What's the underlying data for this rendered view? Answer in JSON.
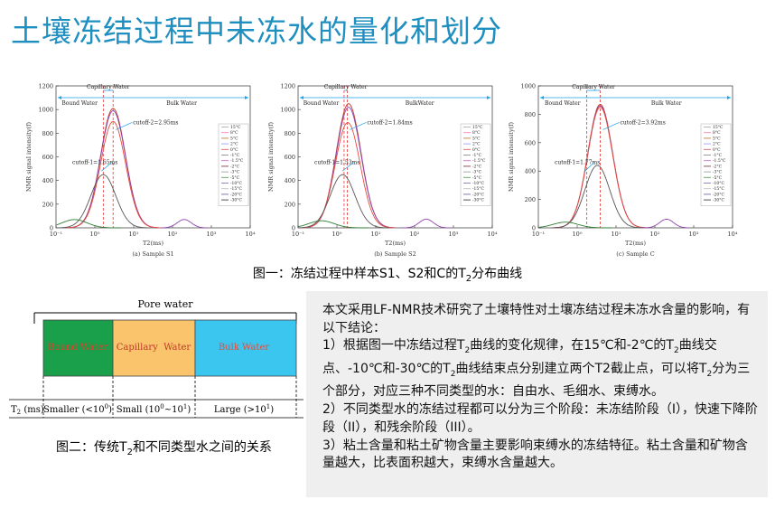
{
  "title": "土壤冻结过程中未冻水的量化和划分",
  "chart_data": [
    {
      "type": "line",
      "subtitle": "(a) Sample S1",
      "xlabel": "T2(ms)",
      "ylabel": "NMR signal intensity(f)",
      "xscale": "log",
      "xlim": [
        0.1,
        10000
      ],
      "ylim": [
        0,
        1200
      ],
      "yticks": [
        "0",
        "200",
        "400",
        "600",
        "800",
        "1000",
        "1200"
      ],
      "xticks": [
        "10⁻¹",
        "10⁰",
        "10¹",
        "10²",
        "10³",
        "10⁴"
      ],
      "regions": [
        "Bound Water",
        "Capillary Water",
        "Bulk Water"
      ],
      "cutoff1_label": "cutoff-1=1.65ms",
      "cutoff1": 1.65,
      "cutoff2_label": "cutoff-2=2.95ms",
      "cutoff2": 2.95,
      "legend": [
        "15°C",
        "8°C",
        "5°C",
        "2°C",
        "0°C",
        "-1°C",
        "-1.5°C",
        "-2°C",
        "-3°C",
        "-5°C",
        "-10°C",
        "-15°C",
        "-20°C",
        "-30°C"
      ],
      "series": [
        {
          "name": "15°C",
          "peak": 1010,
          "mode": 2.95
        },
        {
          "name": "0°C",
          "peak": 990,
          "mode": 2.95
        },
        {
          "name": "-1°C",
          "peak": 900,
          "mode": 2.95
        },
        {
          "name": "-2°C",
          "peak": 450,
          "mode": 1.65
        },
        {
          "name": "-30°C",
          "peak": 70,
          "mode": 0.3
        }
      ]
    },
    {
      "type": "line",
      "subtitle": "(b) Sample S2",
      "xlabel": "T2(ms)",
      "ylabel": "NMR signal intensity(f)",
      "xscale": "log",
      "xlim": [
        0.1,
        10000
      ],
      "ylim": [
        0,
        1200
      ],
      "yticks": [
        "0",
        "200",
        "400",
        "600",
        "800",
        "1000",
        "1200"
      ],
      "xticks": [
        "10⁻¹",
        "10⁰",
        "10¹",
        "10²",
        "10³",
        "10⁴"
      ],
      "regions": [
        "Bound Water",
        "Capillary Water",
        "BulkWater"
      ],
      "cutoff1_label": "cutoff-1=1.53ms",
      "cutoff1": 1.53,
      "cutoff2_label": "cutoff-2=1.84ms",
      "cutoff2": 1.84,
      "legend": [
        "15°C",
        "8°C",
        "5°C",
        "2°C",
        "0°C",
        "-1°C",
        "-1.5°C",
        "-2°C",
        "-3°C",
        "-5°C",
        "-10°C",
        "-15°C",
        "-20°C",
        "-30°C"
      ],
      "series": [
        {
          "name": "15°C",
          "peak": 1050,
          "mode": 2.0
        },
        {
          "name": "0°C",
          "peak": 1020,
          "mode": 2.0
        },
        {
          "name": "-1°C",
          "peak": 890,
          "mode": 1.9
        },
        {
          "name": "-2°C",
          "peak": 450,
          "mode": 1.4
        },
        {
          "name": "-30°C",
          "peak": 60,
          "mode": 0.4
        }
      ]
    },
    {
      "type": "line",
      "subtitle": "(c) Sample C",
      "xlabel": "T2(ms)",
      "ylabel": "NMR signal intensity(f)",
      "xscale": "log",
      "xlim": [
        0.1,
        10000
      ],
      "ylim": [
        0,
        1000
      ],
      "yticks": [
        "0",
        "200",
        "400",
        "600",
        "800",
        "1000"
      ],
      "xticks": [
        "10⁻¹",
        "10⁰",
        "10¹",
        "10²",
        "10³",
        "10⁴"
      ],
      "regions": [
        "Bound Water",
        "Capillary Water",
        "Bulk Water"
      ],
      "cutoff1_label": "cutoff-1=1.77ms",
      "cutoff1": 1.77,
      "cutoff2_label": "cutoff-2=3.92ms",
      "cutoff2": 3.92,
      "legend": [
        "15°C",
        "8°C",
        "5°C",
        "2°C",
        "0°C",
        "-1°C",
        "-1.5°C",
        "-2°C",
        "-3°C",
        "-5°C",
        "-10°C",
        "-15°C",
        "-20°C",
        "-30°C"
      ],
      "series": [
        {
          "name": "15°C",
          "peak": 870,
          "mode": 3.92
        },
        {
          "name": "0°C",
          "peak": 860,
          "mode": 3.92
        },
        {
          "name": "-1°C",
          "peak": 850,
          "mode": 3.92
        },
        {
          "name": "-2°C",
          "peak": 440,
          "mode": 3.3
        },
        {
          "name": "-30°C",
          "peak": 40,
          "mode": 0.5
        }
      ]
    }
  ],
  "figure1_caption": {
    "pre": "图一：冻结过程中样本S1、S2和C的T",
    "sub": "2",
    "post": "分布曲线"
  },
  "diagram": {
    "pore_water": "Pore water",
    "t2_label": "T",
    "t2_sub": "2",
    "t2_unit": " (ms)",
    "colors": {
      "bound": "#1aa04a",
      "capillary": "#f9c46c",
      "bulk": "#3bc6f0"
    },
    "columns": [
      {
        "name": "Bound Water",
        "range_pre": "Smaller (<10",
        "range_sup": "0",
        "range_post": ")"
      },
      {
        "name": "Capillary  Water",
        "range_pre": "Small (10",
        "range_sup": "0",
        "range_mid": "~10",
        "range_sup2": "1",
        "range_post": ")"
      },
      {
        "name": "Bulk Water",
        "range_pre": "Large (>10",
        "range_sup": "1",
        "range_post": ")"
      }
    ]
  },
  "figure2_caption": {
    "pre": "图二：传统T",
    "sub": "2",
    "post": "和不同类型水之间的关系"
  },
  "text": {
    "p1": "本文采用LF-NMR技术研究了土壤特性对土壤冻结过程未冻水含量的影响，有以下结论：",
    "p2_a": "1）根据图一中冻结过程T",
    "p2_sub1": "2",
    "p2_b": "曲线的变化规律，在15℃和-2℃的T",
    "p2_sub2": "2",
    "p2_c": "曲线交点、-10℃和-30℃的T",
    "p2_sub3": "2",
    "p2_d": "曲线结束点分别建立两个T2截止点，可以将T",
    "p2_sub4": "2",
    "p2_e": "分为三个部分，对应三种不同类型的水：自由水、毛细水、束缚水。",
    "p3": "2）不同类型水的冻结过程都可以分为三个阶段：未冻结阶段（I），快速下降阶段（II），和残余阶段（III）。",
    "p4": "3）粘土含量和粘土矿物含量主要影响束缚水的冻结特征。粘土含量和矿物含量越大，比表面积越大，束缚水含量越大。"
  }
}
